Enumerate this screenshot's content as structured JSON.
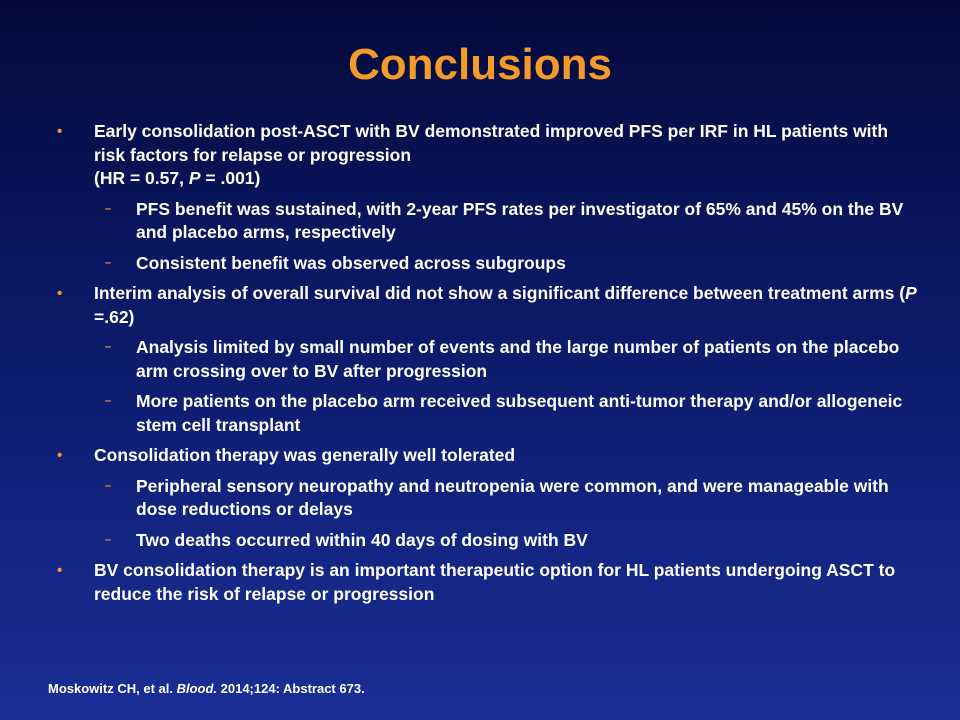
{
  "title": "Conclusions",
  "bullet_symbol": "•",
  "sub_symbol": "–",
  "bullets": [
    {
      "pre": "Early consolidation post-ASCT with BV demonstrated improved PFS per IRF in HL patients with risk factors for relapse or progression",
      "stat_open": "(HR = 0.57, ",
      "stat_italic": "P",
      "stat_close": " = .001)",
      "subs": [
        "PFS benefit was sustained, with 2-year PFS rates per investigator of 65% and 45% on the BV and placebo arms, respectively",
        "Consistent benefit was observed across subgroups"
      ]
    },
    {
      "pre": "Interim analysis of overall survival did not show a significant difference between treatment arms (",
      "stat_italic": "P",
      "stat_close": " =.62)",
      "subs": [
        "Analysis limited by small number of events and the large number of patients on the placebo arm crossing over to BV after progression",
        "More patients on the placebo arm received subsequent anti-tumor therapy and/or allogeneic stem cell transplant"
      ]
    },
    {
      "text": "Consolidation therapy was generally well tolerated",
      "subs": [
        "Peripheral sensory neuropathy and neutropenia were common, and were manageable with dose reductions or delays",
        "Two deaths occurred within 40 days of dosing with BV"
      ]
    },
    {
      "text": "BV consolidation therapy is an important therapeutic option for HL patients undergoing ASCT to reduce the risk of relapse or progression"
    }
  ],
  "footer": {
    "authors": "Moskowitz CH, et al. ",
    "journal": "Blood.",
    "citation": " 2014;124: Abstract 673."
  }
}
